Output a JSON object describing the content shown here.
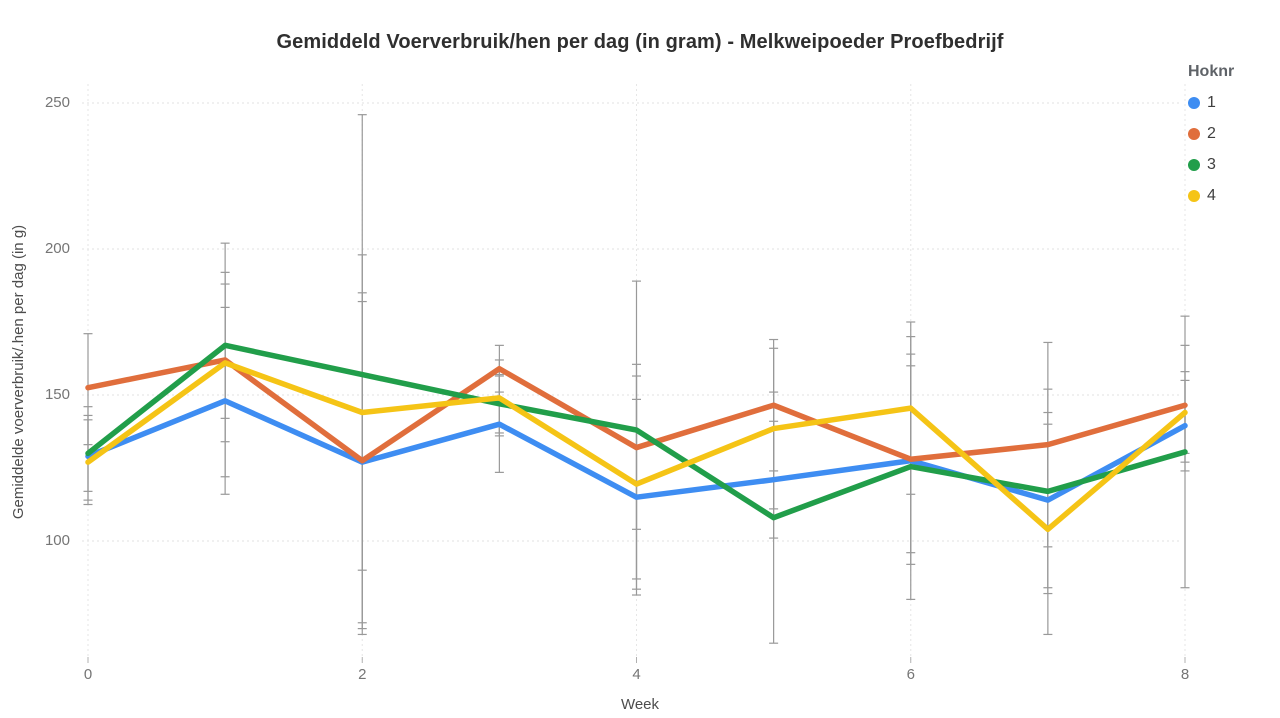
{
  "chart_data": {
    "type": "line",
    "title": "Gemiddeld Voerverbruik/hen per dag (in gram) - Melkweipoeder Proefbedrijf",
    "xlabel": "Week",
    "ylabel": "Gemiddelde voerverbruik/.hen per dag (in g)",
    "legend_title": "Hoknr",
    "legend_position": "right",
    "grid": "dotted",
    "error_bar_color": "#999999",
    "x": [
      0,
      1,
      2,
      3,
      4,
      5,
      6,
      7,
      8
    ],
    "x_tick_values": [
      0,
      2,
      4,
      6,
      8
    ],
    "y_tick_values": [
      250,
      200,
      150,
      100
    ],
    "xlim": [
      0,
      8
    ],
    "ylim": [
      59,
      258
    ],
    "series": [
      {
        "name": "1",
        "color": "#3E8DF2",
        "values": [
          129,
          148,
          127,
          140,
          115,
          121,
          127.5,
          114,
          139.5
        ],
        "error_lo": [
          117,
          116,
          72,
          123.5,
          81.5,
          101,
          96,
          84,
          124
        ],
        "error_hi": [
          143,
          180,
          182,
          156.5,
          148.5,
          141,
          160,
          144,
          155
        ]
      },
      {
        "name": "2",
        "color": "#E06E3C",
        "values": [
          152.5,
          162,
          127.5,
          159,
          132,
          146.5,
          128,
          133,
          146.5
        ],
        "error_lo": [
          133,
          122,
          70,
          151,
          104,
          124,
          92,
          98,
          127
        ],
        "error_hi": [
          171,
          202,
          185,
          167,
          160.5,
          169,
          164,
          168,
          167
        ]
      },
      {
        "name": "3",
        "color": "#219E4A",
        "values": [
          130,
          167,
          157,
          147,
          138,
          108,
          125.5,
          117,
          130.5
        ],
        "error_lo": [
          114,
          142,
          68,
          137,
          87,
          65,
          80,
          82,
          84
        ],
        "error_hi": [
          146,
          192,
          246,
          157,
          189,
          151,
          170,
          152,
          177
        ]
      },
      {
        "name": "4",
        "color": "#F5C416",
        "values": [
          127,
          161,
          144,
          149,
          119.5,
          138.5,
          145.5,
          104,
          144
        ],
        "error_lo": [
          112.5,
          134,
          90,
          136,
          83.5,
          111,
          116,
          68,
          130
        ],
        "error_hi": [
          141.5,
          188,
          198,
          162,
          156.5,
          166,
          175,
          140,
          158
        ]
      }
    ]
  }
}
